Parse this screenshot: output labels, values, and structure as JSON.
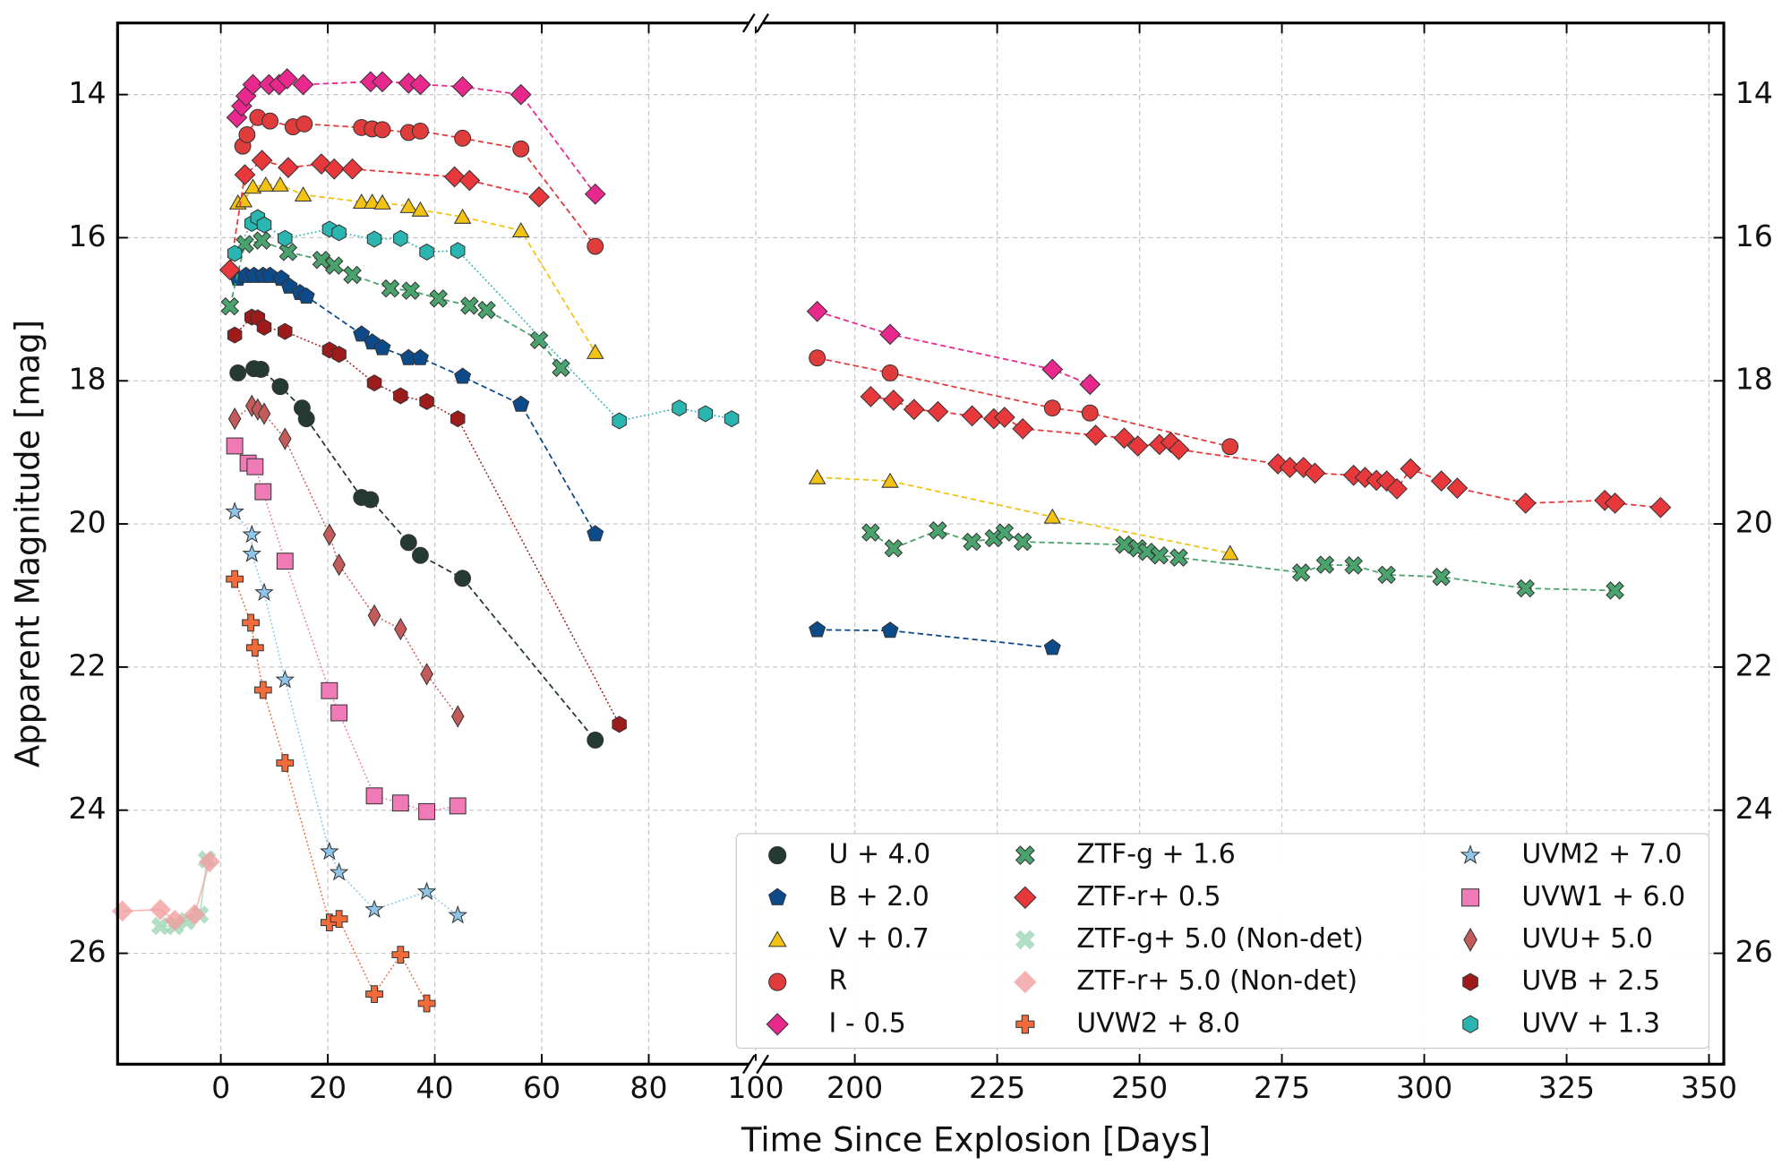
{
  "chart_data": {
    "type": "scatter",
    "xlabel": "Time Since Explosion [Days]",
    "ylabel": "Apparent Magnitude [mag]",
    "xlim": [
      -19.3,
      352.6
    ],
    "xbreak": [
      100,
      182.6
    ],
    "xticks": [
      0,
      20,
      40,
      60,
      80,
      100,
      200,
      225,
      250,
      275,
      300,
      325,
      350
    ],
    "ylim": [
      13.0,
      27.55
    ],
    "y_inverted": true,
    "yticks": [
      14,
      16,
      18,
      20,
      22,
      24,
      26
    ],
    "grid": true,
    "legend": "lower right",
    "series": [
      {
        "name": "U + 4.0",
        "color": "#243a32",
        "marker": "circle",
        "linestyle": "dashed",
        "x": [
          3.2,
          6.2,
          7.5,
          11.1,
          15.2,
          16,
          26.3,
          28,
          35.1,
          37.3,
          45.2,
          70
        ],
        "values": [
          17.89,
          17.83,
          17.84,
          18.08,
          18.38,
          18.53,
          19.63,
          19.66,
          20.26,
          20.44,
          20.76,
          23.02
        ]
      },
      {
        "name": "B + 2.0",
        "color": "#0d4a8a",
        "marker": "pentagon",
        "linestyle": "dashed",
        "x": [
          3.2,
          4.7,
          6.2,
          7.9,
          9.2,
          11.3,
          12.8,
          14.8,
          16,
          26.3,
          28.3,
          30.2,
          35.1,
          37.3,
          45.2,
          56.1,
          70,
          193.4,
          206.2,
          234.7
        ],
        "values": [
          16.57,
          16.53,
          16.53,
          16.53,
          16.53,
          16.57,
          16.68,
          16.77,
          16.82,
          17.35,
          17.46,
          17.54,
          17.68,
          17.68,
          17.94,
          18.33,
          20.14,
          21.48,
          21.49,
          21.73
        ]
      },
      {
        "name": "V + 0.7",
        "color": "#f2c313",
        "marker": "triangle",
        "linestyle": "dashed",
        "x": [
          3.2,
          4.3,
          6,
          8.4,
          11.1,
          15.4,
          26.3,
          28.3,
          30.2,
          35.1,
          37.3,
          45.2,
          56.1,
          70,
          193.4,
          206.2,
          234.7,
          265.9
        ],
        "values": [
          15.51,
          15.48,
          15.29,
          15.26,
          15.26,
          15.4,
          15.5,
          15.5,
          15.51,
          15.56,
          15.61,
          15.71,
          15.9,
          17.6,
          19.35,
          19.4,
          19.9,
          20.41
        ]
      },
      {
        "name": "R",
        "color": "#e03c3c",
        "marker": "circle",
        "linestyle": "dashed",
        "x": [
          4.1,
          4.9,
          6.9,
          9.2,
          13.5,
          15.6,
          26.3,
          28.3,
          30.2,
          35.1,
          37.3,
          45.2,
          56.1,
          70,
          193.4,
          206.2,
          234.7,
          241.3,
          265.9
        ],
        "values": [
          14.72,
          14.56,
          14.32,
          14.37,
          14.45,
          14.41,
          14.46,
          14.48,
          14.49,
          14.53,
          14.51,
          14.61,
          14.76,
          16.12,
          17.68,
          17.89,
          18.38,
          18.45,
          18.92
        ]
      },
      {
        "name": "I - 0.5",
        "color": "#e8288c",
        "marker": "diamond",
        "linestyle": "dashed",
        "x": [
          3,
          3.9,
          4.7,
          6,
          9,
          10.9,
          12.4,
          15.4,
          28,
          30.2,
          35.1,
          37.3,
          45.2,
          56.1,
          70,
          193.4,
          206.2,
          234.7,
          241.3
        ],
        "values": [
          14.32,
          14.16,
          14.02,
          13.86,
          13.86,
          13.86,
          13.78,
          13.86,
          13.82,
          13.82,
          13.84,
          13.86,
          13.89,
          14.0,
          15.39,
          17.03,
          17.35,
          17.84,
          18.05
        ]
      },
      {
        "name": "ZTF-g + 1.6",
        "color": "#4aa36c",
        "marker": "x",
        "linestyle": "dashed",
        "x": [
          1.7,
          4.5,
          7.7,
          12.6,
          18.8,
          21.2,
          24.6,
          31.7,
          35.5,
          40.7,
          46.5,
          49.7,
          59.5,
          63.6,
          202.8,
          206.8,
          214.6,
          220.6,
          224.4,
          226.3,
          229.5,
          247.3,
          249.7,
          251.3,
          253.5,
          256.9,
          278.4,
          282.6,
          287.6,
          293.4,
          303,
          317.8,
          333.5
        ],
        "values": [
          16.96,
          16.09,
          16.04,
          16.2,
          16.31,
          16.39,
          16.52,
          16.71,
          16.74,
          16.85,
          16.95,
          17.01,
          17.43,
          17.82,
          20.12,
          20.34,
          20.09,
          20.25,
          20.2,
          20.12,
          20.25,
          20.29,
          20.34,
          20.39,
          20.44,
          20.47,
          20.68,
          20.57,
          20.58,
          20.71,
          20.74,
          20.9,
          20.93
        ]
      },
      {
        "name": "ZTF-r+ 0.5",
        "color": "#e8383c",
        "marker": "diamond",
        "linestyle": "dashed",
        "x": [
          1.7,
          4.5,
          7.7,
          12.6,
          18.8,
          21.2,
          24.6,
          43.7,
          46.5,
          59.5,
          202.8,
          206.8,
          210.4,
          214.6,
          220.6,
          224.4,
          226.3,
          229.5,
          242.3,
          247.3,
          249.7,
          253.5,
          255.5,
          256.9,
          274.3,
          276.4,
          278.8,
          280.8,
          287.6,
          289.6,
          291.6,
          293.4,
          295.2,
          297.6,
          303,
          305.8,
          317.8,
          331.7,
          333.5,
          341.5
        ],
        "values": [
          16.45,
          15.12,
          14.92,
          15.02,
          14.97,
          15.04,
          15.04,
          15.15,
          15.2,
          15.43,
          18.22,
          18.27,
          18.4,
          18.43,
          18.49,
          18.53,
          18.51,
          18.67,
          18.76,
          18.8,
          18.91,
          18.89,
          18.86,
          18.96,
          19.16,
          19.21,
          19.21,
          19.29,
          19.32,
          19.35,
          19.39,
          19.4,
          19.51,
          19.23,
          19.4,
          19.5,
          19.71,
          19.67,
          19.71,
          19.77
        ]
      },
      {
        "name": "ZTF-g+ 5.0 (Non-det)",
        "color": "#9fd6b7",
        "marker": "x",
        "linestyle": "solid",
        "x": [
          -11.3,
          -8.6,
          -6.4,
          -3.9,
          -2.6
        ],
        "values": [
          25.62,
          25.62,
          25.55,
          25.46,
          24.69
        ]
      },
      {
        "name": "ZTF-r+ 5.0 (Non-det)",
        "color": "#f2a0a0",
        "marker": "diamond",
        "linestyle": "solid",
        "x": [
          -18.4,
          -11.3,
          -8.6,
          -4.9,
          -2.1
        ],
        "values": [
          25.41,
          25.39,
          25.54,
          25.46,
          24.72
        ]
      },
      {
        "name": "UVW2 + 8.0",
        "color": "#f26b3a",
        "marker": "cross",
        "linestyle": "dotted",
        "x": [
          2.6,
          5.6,
          6.4,
          7.9,
          12,
          20.3,
          22.1,
          28.7,
          33.6,
          38.5
        ],
        "values": [
          20.77,
          21.38,
          21.73,
          22.32,
          23.34,
          25.57,
          25.52,
          26.57,
          26.02,
          26.7
        ]
      },
      {
        "name": "UVM2 + 7.0",
        "color": "#8ec5e8",
        "marker": "star",
        "linestyle": "dotted",
        "x": [
          2.6,
          5.8,
          5.8,
          8.1,
          12,
          20.3,
          22.1,
          28.7,
          38.5,
          44.3
        ],
        "values": [
          19.83,
          20.15,
          20.42,
          20.96,
          22.18,
          24.58,
          24.87,
          25.39,
          25.14,
          25.47
        ]
      },
      {
        "name": "UVW1 + 6.0",
        "color": "#f07ab5",
        "marker": "square",
        "linestyle": "dotted",
        "x": [
          2.6,
          5.1,
          6.4,
          7.9,
          12,
          20.3,
          22.1,
          28.7,
          33.6,
          38.5,
          44.3
        ],
        "values": [
          18.91,
          19.15,
          19.2,
          19.55,
          20.52,
          22.33,
          22.64,
          23.8,
          23.9,
          24.02,
          23.94
        ]
      },
      {
        "name": "UVU+ 5.0",
        "color": "#c45a5a",
        "marker": "thin_diamond",
        "linestyle": "dotted",
        "x": [
          2.6,
          5.8,
          6.9,
          8.1,
          12,
          20.3,
          22.1,
          28.7,
          33.6,
          38.5,
          44.3
        ],
        "values": [
          18.53,
          18.35,
          18.4,
          18.46,
          18.81,
          20.15,
          20.57,
          21.28,
          21.47,
          22.1,
          22.69
        ]
      },
      {
        "name": "UVB + 2.5",
        "color": "#9e1b1b",
        "marker": "hexagon",
        "linestyle": "dotted",
        "x": [
          2.6,
          5.8,
          6.9,
          8.1,
          12,
          20.3,
          22.1,
          28.7,
          33.6,
          38.5,
          44.3,
          74.5
        ],
        "values": [
          17.36,
          17.11,
          17.12,
          17.25,
          17.31,
          17.57,
          17.63,
          18.03,
          18.21,
          18.29,
          18.53,
          22.8
        ]
      },
      {
        "name": "UVV + 1.3",
        "color": "#2ab5b0",
        "marker": "hexagon",
        "linestyle": "dotted",
        "x": [
          2.6,
          5.8,
          6.9,
          8.1,
          12,
          20.3,
          22.1,
          28.7,
          33.6,
          38.5,
          44.3,
          74.5,
          85.7,
          90.6,
          95.5
        ],
        "values": [
          16.22,
          15.8,
          15.72,
          15.82,
          16.01,
          15.88,
          15.93,
          16.02,
          16.01,
          16.2,
          16.18,
          18.56,
          18.38,
          18.46,
          18.53
        ]
      }
    ]
  }
}
